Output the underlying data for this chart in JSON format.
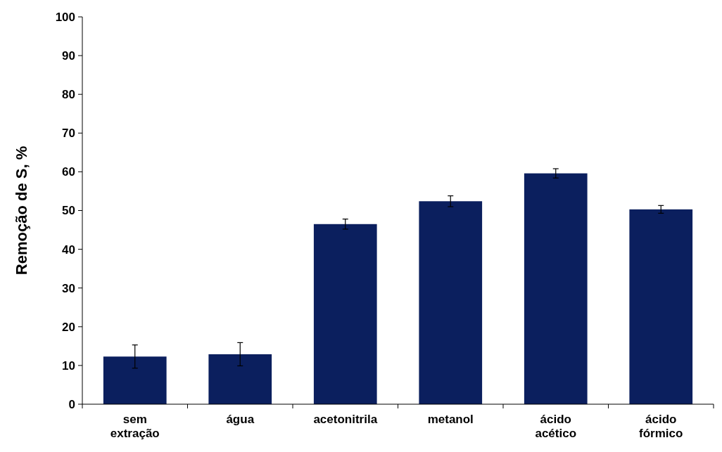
{
  "chart_data": {
    "type": "bar",
    "ylabel": "Remoção de S, %",
    "categories": [
      "sem extração",
      "água",
      "acetonitrila",
      "metanol",
      "ácido acético",
      "ácido fórmico"
    ],
    "values": [
      12.3,
      12.9,
      46.5,
      52.4,
      59.6,
      50.3
    ],
    "errors": [
      3,
      3,
      1.3,
      1.4,
      1.2,
      1
    ],
    "color": "#0b1f5e",
    "ylim": [
      0,
      100
    ],
    "yticks": [
      0,
      10,
      20,
      30,
      40,
      50,
      60,
      70,
      80,
      90,
      100
    ],
    "grid": false
  }
}
